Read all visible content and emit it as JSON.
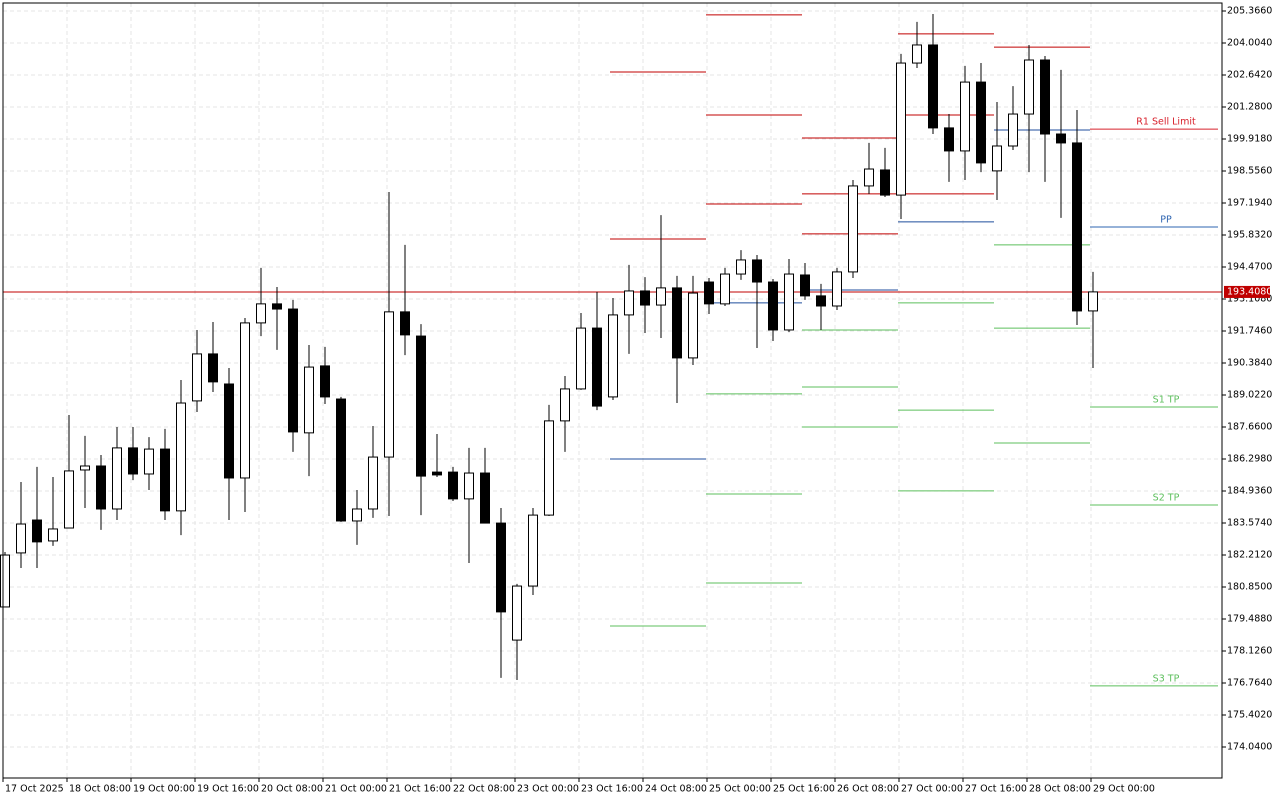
{
  "chart_data": {
    "type": "candlestick",
    "x_labels": [
      "17 Oct 2025",
      "18 Oct 08:00",
      "19 Oct 00:00",
      "19 Oct 16:00",
      "20 Oct 08:00",
      "21 Oct 00:00",
      "21 Oct 16:00",
      "22 Oct 08:00",
      "23 Oct 00:00",
      "23 Oct 16:00",
      "24 Oct 08:00",
      "25 Oct 00:00",
      "25 Oct 16:00",
      "26 Oct 08:00",
      "27 Oct 00:00",
      "27 Oct 16:00",
      "28 Oct 08:00",
      "29 Oct 00:00"
    ],
    "ylim": [
      172.72,
      205.706
    ],
    "yticks": [
      {
        "value": 205.366,
        "label": "205.3660"
      },
      {
        "value": 204.004,
        "label": "204.0040"
      },
      {
        "value": 202.642,
        "label": "202.6420"
      },
      {
        "value": 201.28,
        "label": "201.2800"
      },
      {
        "value": 199.918,
        "label": "199.9180"
      },
      {
        "value": 198.556,
        "label": "198.5560"
      },
      {
        "value": 197.194,
        "label": "197.1940"
      },
      {
        "value": 195.832,
        "label": "195.8320"
      },
      {
        "value": 194.47,
        "label": "194.4700"
      },
      {
        "value": 193.108,
        "label": "193.1080"
      },
      {
        "value": 191.746,
        "label": "191.7460"
      },
      {
        "value": 190.384,
        "label": "190.3840"
      },
      {
        "value": 189.022,
        "label": "189.0220"
      },
      {
        "value": 187.66,
        "label": "187.6600"
      },
      {
        "value": 186.298,
        "label": "186.2980"
      },
      {
        "value": 184.936,
        "label": "184.9360"
      },
      {
        "value": 183.574,
        "label": "183.5740"
      },
      {
        "value": 182.212,
        "label": "182.2120"
      },
      {
        "value": 180.85,
        "label": "180.8500"
      },
      {
        "value": 179.488,
        "label": "179.4880"
      },
      {
        "value": 178.126,
        "label": "178.1260"
      },
      {
        "value": 176.764,
        "label": "176.7640"
      },
      {
        "value": 175.402,
        "label": "175.4020"
      },
      {
        "value": 174.04,
        "label": "174.0400"
      }
    ],
    "grid": true,
    "up_color": "#ffffff",
    "down_color": "#000000",
    "open": [
      180.0,
      182.3,
      183.7,
      182.81,
      183.36,
      185.83,
      186.0,
      184.17,
      186.77,
      185.66,
      186.72,
      184.09,
      188.77,
      190.77,
      189.49,
      185.49,
      192.09,
      192.9,
      192.68,
      187.41,
      190.26,
      188.85,
      183.66,
      184.17,
      186.38,
      192.56,
      191.53,
      185.74,
      185.74,
      184.6,
      185.7,
      183.57,
      178.59,
      180.89,
      183.91,
      187.92,
      189.28,
      191.87,
      188.94,
      192.43,
      193.45,
      192.85,
      193.58,
      190.6,
      193.83,
      192.9,
      194.17,
      194.77,
      193.83,
      191.79,
      194.13,
      193.24,
      192.81,
      194.26,
      197.92,
      198.6,
      197.53,
      203.15,
      203.92,
      200.39,
      199.41,
      202.34,
      198.56,
      199.62,
      200.98,
      203.28,
      200.13,
      199.75,
      192.6
    ],
    "high": [
      182.34,
      185.32,
      185.96,
      185.53,
      188.17,
      187.28,
      186.47,
      187.66,
      187.66,
      187.23,
      187.58,
      189.66,
      191.79,
      192.13,
      190.17,
      192.3,
      194.43,
      193.62,
      193.07,
      191.15,
      191.07,
      188.94,
      184.98,
      187.7,
      197.66,
      195.41,
      192.04,
      187.36,
      185.96,
      186.77,
      186.77,
      184.21,
      180.98,
      184.21,
      188.6,
      189.83,
      192.51,
      193.41,
      193.15,
      194.56,
      194.04,
      196.68,
      194.09,
      194.09,
      194.0,
      194.43,
      195.19,
      194.98,
      193.96,
      194.81,
      194.64,
      193.75,
      194.43,
      198.17,
      199.75,
      199.54,
      203.54,
      204.9,
      205.24,
      200.98,
      203.03,
      203.15,
      201.49,
      202.17,
      203.92,
      203.45,
      202.86,
      201.15,
      194.26
    ],
    "low": [
      180.0,
      181.66,
      181.66,
      182.6,
      183.36,
      184.21,
      183.28,
      183.7,
      185.4,
      184.98,
      183.7,
      183.06,
      188.3,
      189.15,
      183.7,
      184.04,
      191.53,
      190.94,
      186.6,
      185.57,
      188.64,
      183.62,
      182.64,
      183.79,
      183.87,
      190.72,
      183.91,
      185.53,
      184.51,
      181.87,
      183.57,
      176.98,
      176.89,
      180.51,
      183.87,
      186.6,
      189.24,
      188.38,
      188.81,
      190.77,
      191.66,
      191.45,
      188.68,
      190.3,
      192.47,
      192.81,
      193.92,
      191.02,
      191.32,
      191.7,
      193.07,
      191.79,
      192.64,
      194.0,
      197.58,
      197.45,
      196.51,
      202.94,
      200.13,
      198.09,
      198.17,
      198.51,
      197.32,
      199.45,
      198.51,
      198.09,
      196.56,
      192.0,
      190.17
    ],
    "close": [
      182.21,
      183.53,
      182.77,
      183.32,
      185.79,
      186.0,
      184.17,
      186.77,
      185.66,
      186.72,
      184.09,
      188.68,
      190.77,
      189.58,
      185.49,
      192.09,
      192.9,
      192.68,
      187.45,
      190.21,
      188.94,
      183.66,
      184.17,
      186.38,
      192.56,
      191.58,
      185.57,
      185.62,
      184.6,
      185.7,
      183.57,
      179.79,
      180.89,
      183.91,
      187.92,
      189.28,
      191.87,
      188.55,
      192.43,
      193.45,
      192.85,
      193.58,
      190.6,
      193.36,
      192.9,
      194.17,
      194.77,
      193.83,
      191.79,
      194.17,
      193.24,
      192.81,
      194.26,
      197.92,
      198.64,
      197.53,
      203.15,
      203.92,
      200.39,
      199.41,
      202.34,
      198.9,
      199.62,
      200.98,
      203.28,
      200.13,
      199.75,
      192.6,
      193.41
    ],
    "current_price": {
      "value": 193.408,
      "label": "193.4080"
    },
    "current_price_color": "#c00000",
    "levels": {
      "resistance": {
        "color": "#c00000",
        "values": [
          [
            null,
            202.77,
            195.66
          ],
          [
            205.2,
            200.94,
            197.15
          ],
          [
            199.96,
            197.58,
            195.88
          ],
          [
            204.39,
            200.94,
            197.58
          ],
          [
            null,
            null,
            203.83
          ]
        ]
      },
      "pivot": {
        "color": "#1f4e9c",
        "values": [
          186.3,
          192.94,
          193.49,
          196.39,
          200.3
        ]
      },
      "support": {
        "color": "#5cbf5c",
        "values": [
          [
            179.19,
            null,
            null
          ],
          [
            189.07,
            184.81,
            181.02
          ],
          [
            191.79,
            189.36,
            187.66
          ],
          [
            192.94,
            188.38,
            184.94
          ],
          [
            195.41,
            191.87,
            186.98
          ]
        ]
      }
    },
    "annotations": [
      {
        "text": "R1 Sell Limit",
        "value": 200.34,
        "color": "#d8202b"
      },
      {
        "text": "PP",
        "value": 196.17,
        "color": "#2e64b0"
      },
      {
        "text": "S1 TP",
        "value": 188.51,
        "color": "#5cbf5c"
      },
      {
        "text": "S2 TP",
        "value": 184.34,
        "color": "#5cbf5c"
      },
      {
        "text": "S3 TP",
        "value": 176.64,
        "color": "#5cbf5c"
      }
    ]
  }
}
